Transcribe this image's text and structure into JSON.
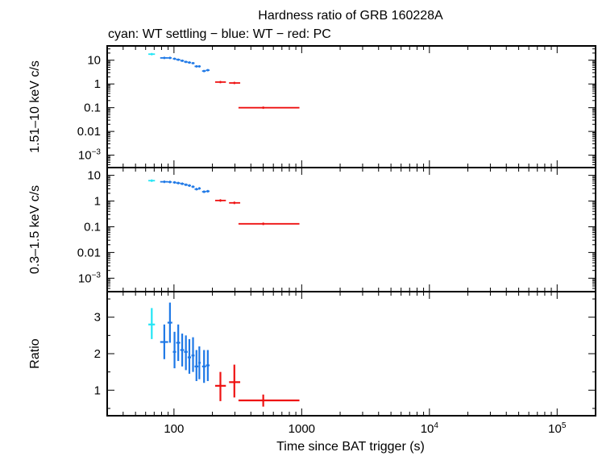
{
  "chart_data": {
    "type": "scatter",
    "title": "Hardness ratio of GRB 160228A",
    "subtitle": "cyan: WT settling − blue: WT − red: PC",
    "xlabel": "Time since BAT trigger (s)",
    "x_scale": "log",
    "xlim": [
      30,
      200000
    ],
    "x_ticks": [
      {
        "value": 100,
        "label": "100",
        "exp": ""
      },
      {
        "value": 1000,
        "label": "1000",
        "exp": ""
      },
      {
        "value": 10000,
        "label": "10",
        "exp": "4"
      },
      {
        "value": 100000,
        "label": "10",
        "exp": "5"
      }
    ],
    "colors": {
      "cyan": "#22e5f5",
      "blue": "#1e78e6",
      "red": "#ee1111"
    },
    "panels": [
      {
        "ylabel": "1.51–10 keV c/s",
        "y_scale": "log",
        "ylim": [
          0.0003,
          40
        ],
        "y_ticks": [
          {
            "value": 10,
            "label": "10",
            "exp": ""
          },
          {
            "value": 1,
            "label": "1",
            "exp": ""
          },
          {
            "value": 0.1,
            "label": "0.1",
            "exp": ""
          },
          {
            "value": 0.01,
            "label": "0.01",
            "exp": ""
          },
          {
            "value": 0.001,
            "label": "10",
            "exp": "−3"
          }
        ],
        "series": [
          {
            "color": "cyan",
            "points": [
              [
                67,
                18,
                63,
                71,
                1
              ]
            ]
          },
          {
            "color": "blue",
            "points": [
              [
                84,
                12.5,
                78,
                90,
                1
              ],
              [
                93,
                12.5,
                90,
                96,
                1
              ],
              [
                101,
                11.5,
                98,
                104,
                1
              ],
              [
                108,
                10.5,
                104,
                112,
                1
              ],
              [
                116,
                9.5,
                112,
                120,
                1
              ],
              [
                124,
                8.5,
                120,
                128,
                1
              ],
              [
                132,
                8,
                128,
                136,
                1
              ],
              [
                141,
                7.5,
                137,
                145,
                1
              ],
              [
                150,
                5.5,
                145,
                155,
                1
              ],
              [
                158,
                5.5,
                155,
                162,
                1
              ],
              [
                172,
                3.5,
                166,
                178,
                1
              ],
              [
                184,
                3.8,
                178,
                190,
                1
              ]
            ]
          },
          {
            "color": "red",
            "points": [
              [
                231,
                1.2,
                210,
                255,
                1
              ],
              [
                297,
                1.1,
                270,
                330,
                1
              ],
              [
                500,
                0.1,
                320,
                960,
                1
              ]
            ]
          }
        ]
      },
      {
        "ylabel": "0.3–1.5 keV c/s",
        "y_scale": "log",
        "ylim": [
          0.0003,
          20
        ],
        "y_ticks": [
          {
            "value": 10,
            "label": "10",
            "exp": ""
          },
          {
            "value": 1,
            "label": "1",
            "exp": ""
          },
          {
            "value": 0.1,
            "label": "0.1",
            "exp": ""
          },
          {
            "value": 0.01,
            "label": "0.01",
            "exp": ""
          },
          {
            "value": 0.001,
            "label": "10",
            "exp": "−3"
          }
        ],
        "series": [
          {
            "color": "cyan",
            "points": [
              [
                67,
                6.2,
                63,
                71,
                1
              ]
            ]
          },
          {
            "color": "blue",
            "points": [
              [
                84,
                5.6,
                78,
                90,
                1
              ],
              [
                93,
                5.5,
                90,
                96,
                1
              ],
              [
                101,
                5.3,
                98,
                104,
                1
              ],
              [
                108,
                5.0,
                104,
                112,
                1
              ],
              [
                116,
                4.7,
                112,
                120,
                1
              ],
              [
                124,
                4.3,
                120,
                128,
                1
              ],
              [
                132,
                4.0,
                128,
                136,
                1
              ],
              [
                141,
                3.6,
                137,
                145,
                1
              ],
              [
                150,
                2.9,
                145,
                155,
                1
              ],
              [
                158,
                3.1,
                155,
                162,
                1
              ],
              [
                172,
                2.3,
                166,
                178,
                1
              ],
              [
                184,
                2.4,
                178,
                190,
                1
              ]
            ]
          },
          {
            "color": "red",
            "points": [
              [
                231,
                1.05,
                210,
                255,
                1
              ],
              [
                297,
                0.85,
                270,
                330,
                1
              ],
              [
                500,
                0.13,
                320,
                960,
                1
              ]
            ]
          }
        ]
      },
      {
        "ylabel": "Ratio",
        "y_scale": "linear",
        "ylim": [
          0.3,
          3.7
        ],
        "y_ticks": [
          {
            "value": 3,
            "label": "3",
            "exp": ""
          },
          {
            "value": 2,
            "label": "2",
            "exp": ""
          },
          {
            "value": 1,
            "label": "1",
            "exp": ""
          }
        ],
        "series": [
          {
            "color": "cyan",
            "points": [
              [
                67,
                2.8,
                63,
                71,
                2.4,
                3.25
              ]
            ]
          },
          {
            "color": "blue",
            "points": [
              [
                84,
                2.32,
                78,
                90,
                1.85,
                2.8
              ],
              [
                93,
                2.85,
                89,
                97,
                2.3,
                3.4
              ],
              [
                101,
                2.05,
                98,
                104,
                1.6,
                2.6
              ],
              [
                108,
                2.3,
                104,
                112,
                1.8,
                2.8
              ],
              [
                116,
                2.1,
                112,
                120,
                1.65,
                2.55
              ],
              [
                124,
                2.05,
                120,
                128,
                1.55,
                2.5
              ],
              [
                132,
                1.9,
                128,
                136,
                1.45,
                2.4
              ],
              [
                141,
                1.95,
                137,
                145,
                1.5,
                2.45
              ],
              [
                150,
                1.65,
                145,
                155,
                1.25,
                2.1
              ],
              [
                158,
                1.75,
                155,
                162,
                1.3,
                2.2
              ],
              [
                172,
                1.65,
                166,
                178,
                1.2,
                2.1
              ],
              [
                184,
                1.68,
                178,
                190,
                1.25,
                2.1
              ]
            ]
          },
          {
            "color": "red",
            "points": [
              [
                231,
                1.12,
                210,
                255,
                0.7,
                1.5
              ],
              [
                297,
                1.22,
                270,
                330,
                0.8,
                1.7
              ],
              [
                500,
                0.72,
                320,
                960,
                0.55,
                0.88
              ]
            ]
          }
        ]
      }
    ]
  }
}
